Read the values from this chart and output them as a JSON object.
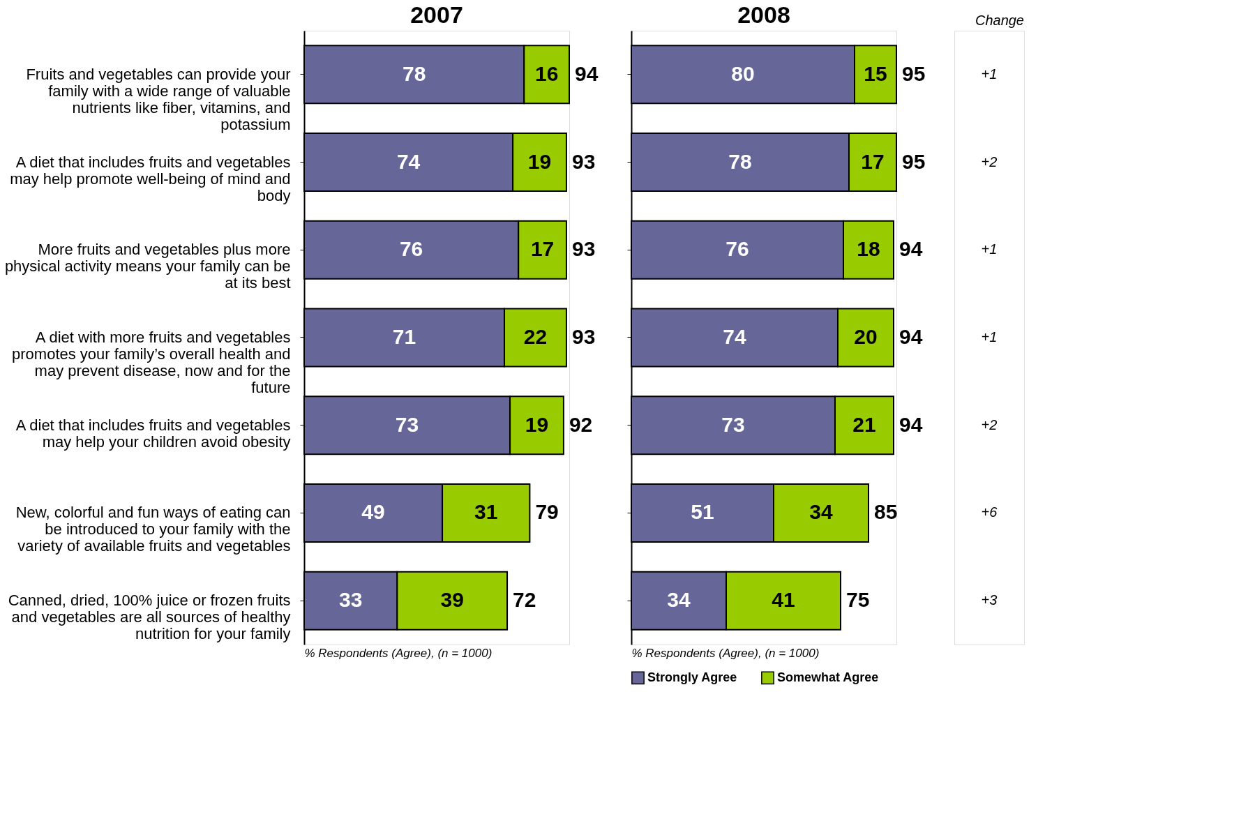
{
  "chart_data": [
    {
      "type": "bar",
      "orientation": "horizontal",
      "stacked": true,
      "title": "2007",
      "xlabel": "% Respondents (Agree), (n = 1000)",
      "data_labels": true,
      "legend": false,
      "tick_labels": "y",
      "categories": [
        "Fruits and vegetables can provide your family with a wide range of valuable nutrients like fiber, vitamins, and potassium",
        "A diet that includes fruits and vegetables may help promote well-being of mind and body",
        "More fruits and vegetables plus more physical activity means your family can be at its best",
        "A diet with more fruits and vegetables promotes your family’s overall health and may prevent disease, now and for the future",
        "A diet that includes fruits and vegetables may help your children avoid obesity",
        "New, colorful and fun ways of eating can be introduced to your family with the variety of available fruits and vegetables",
        "Canned, dried, 100% juice or frozen fruits and vegetables are all sources of healthy nutrition for your family"
      ],
      "series": [
        {
          "color": "#666699",
          "values": [
            78,
            74,
            76,
            71,
            73,
            49,
            33
          ]
        },
        {
          "color": "#99cc00",
          "values": [
            16,
            19,
            17,
            22,
            19,
            31,
            39
          ]
        }
      ],
      "totals": [
        "94",
        "93",
        "93",
        "93",
        "92",
        "79",
        "72"
      ]
    },
    {
      "type": "bar",
      "orientation": "horizontal",
      "stacked": true,
      "title": "2008",
      "xlabel": "% Respondents (Agree), (n = 1000)",
      "data_labels": true,
      "legend": "bottom",
      "tick_labels": false,
      "categories": [
        null,
        null,
        null,
        null,
        null,
        null,
        null
      ],
      "series": [
        {
          "name": "Strongly Agree",
          "color": "#666699",
          "values": [
            80,
            78,
            76,
            74,
            73,
            51,
            34
          ]
        },
        {
          "name": "Somewhat Agree",
          "color": "#99cc00",
          "values": [
            15,
            17,
            18,
            20,
            21,
            34,
            41
          ]
        }
      ],
      "totals": [
        "95",
        "95",
        "94",
        "94",
        "94",
        "85",
        "75"
      ],
      "annotations": [
        "Change",
        "+1",
        "+2",
        "+1",
        "+1",
        "+2",
        "+6",
        "+3"
      ]
    }
  ]
}
